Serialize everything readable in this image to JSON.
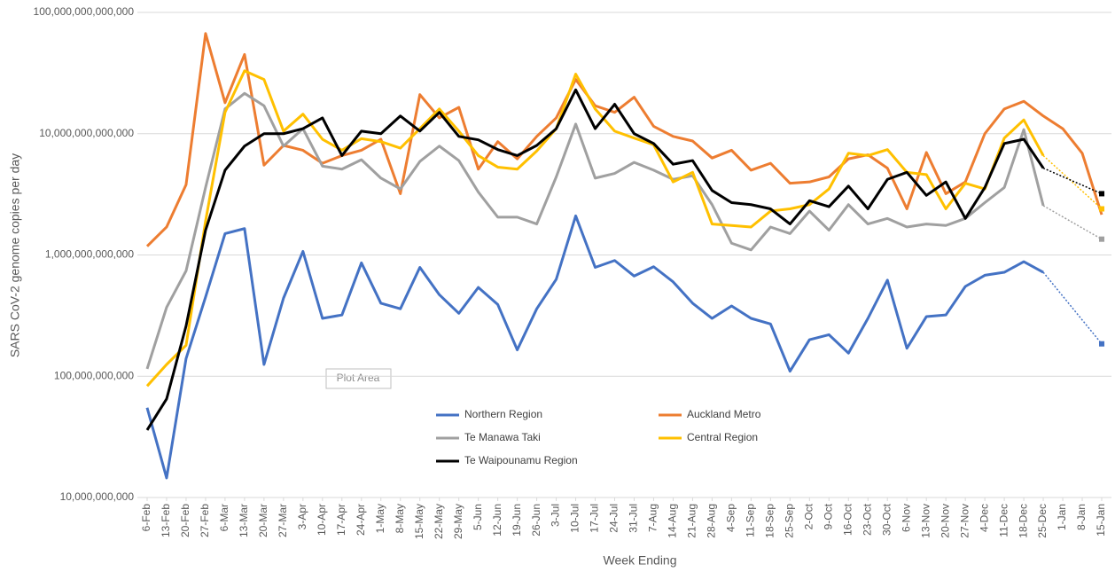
{
  "chart_data": {
    "type": "line",
    "y_label": "SARS CoV-2 genome copies per day",
    "x_label": "Week Ending",
    "annotation": "Plot Area",
    "log_scale": true,
    "grid": true,
    "categories": [
      "6-Feb",
      "13-Feb",
      "20-Feb",
      "27-Feb",
      "6-Mar",
      "13-Mar",
      "20-Mar",
      "27-Mar",
      "3-Apr",
      "10-Apr",
      "17-Apr",
      "24-Apr",
      "1-May",
      "8-May",
      "15-May",
      "22-May",
      "29-May",
      "5-Jun",
      "12-Jun",
      "19-Jun",
      "26-Jun",
      "3-Jul",
      "10-Jul",
      "17-Jul",
      "24-Jul",
      "31-Jul",
      "7-Aug",
      "14-Aug",
      "21-Aug",
      "28-Aug",
      "4-Sep",
      "11-Sep",
      "18-Sep",
      "25-Sep",
      "2-Oct",
      "9-Oct",
      "16-Oct",
      "23-Oct",
      "30-Oct",
      "6-Nov",
      "13-Nov",
      "20-Nov",
      "27-Nov",
      "4-Dec",
      "11-Dec",
      "18-Dec",
      "25-Dec",
      "1-Jan",
      "8-Jan",
      "15-Jan"
    ],
    "ylim": [
      10000000000,
      100000000000000
    ],
    "yticks": [
      {
        "value": 10000000000,
        "label": "10,000,000,000"
      },
      {
        "value": 100000000000,
        "label": "100,000,000,000"
      },
      {
        "value": 1000000000000,
        "label": "1,000,000,000,000"
      },
      {
        "value": 10000000000000,
        "label": "10,000,000,000,000"
      },
      {
        "value": 100000000000000,
        "label": "100,000,000,000,000"
      }
    ],
    "series": [
      {
        "name": "Northern Region",
        "color": "#4472c4",
        "values": [
          55000000000,
          14500000000,
          140000000000,
          450000000000,
          1500000000000,
          1650000000000,
          125000000000,
          440000000000,
          1070000000000,
          300000000000,
          320000000000,
          860000000000,
          400000000000,
          360000000000,
          790000000000,
          470000000000,
          330000000000,
          540000000000,
          390000000000,
          165000000000,
          360000000000,
          630000000000,
          2100000000000,
          790000000000,
          900000000000,
          670000000000,
          800000000000,
          600000000000,
          400000000000,
          300000000000,
          380000000000,
          300000000000,
          270000000000,
          110000000000,
          200000000000,
          220000000000,
          155000000000,
          300000000000,
          620000000000,
          170000000000,
          310000000000,
          320000000000,
          550000000000,
          680000000000,
          720000000000,
          880000000000,
          720000000000,
          null,
          null,
          185000000000
        ]
      },
      {
        "name": "Auckland Metro",
        "color": "#ed7d31",
        "values": [
          1180000000000,
          1700000000000,
          3800000000000,
          67000000000000,
          18000000000000,
          45000000000000,
          5500000000000,
          8000000000000,
          7300000000000,
          5700000000000,
          6600000000000,
          7300000000000,
          9000000000000,
          3200000000000,
          21000000000000,
          13500000000000,
          16500000000000,
          5100000000000,
          8600000000000,
          6200000000000,
          9500000000000,
          13500000000000,
          28000000000000,
          17000000000000,
          15000000000000,
          20000000000000,
          11500000000000,
          9500000000000,
          8700000000000,
          6300000000000,
          7300000000000,
          5000000000000,
          5700000000000,
          3900000000000,
          4000000000000,
          4400000000000,
          6200000000000,
          6700000000000,
          5200000000000,
          2400000000000,
          7000000000000,
          3200000000000,
          4000000000000,
          10000000000000,
          16000000000000,
          18500000000000,
          14000000000000,
          11000000000000,
          6900000000000,
          2150000000000
        ]
      },
      {
        "name": "Te Manawa Taki",
        "color": "#a0a0a0",
        "values": [
          115000000000,
          370000000000,
          740000000000,
          3600000000000,
          16000000000000,
          21500000000000,
          17000000000000,
          7900000000000,
          11000000000000,
          5400000000000,
          5100000000000,
          6100000000000,
          4300000000000,
          3500000000000,
          5900000000000,
          7900000000000,
          6000000000000,
          3300000000000,
          2050000000000,
          2050000000000,
          1800000000000,
          4400000000000,
          12000000000000,
          4300000000000,
          4700000000000,
          5800000000000,
          5000000000000,
          4200000000000,
          4500000000000,
          2600000000000,
          1250000000000,
          1100000000000,
          1700000000000,
          1500000000000,
          2300000000000,
          1600000000000,
          2600000000000,
          1800000000000,
          2000000000000,
          1700000000000,
          1800000000000,
          1750000000000,
          2000000000000,
          2700000000000,
          3600000000000,
          10800000000000,
          2550000000000,
          null,
          null,
          1350000000000
        ]
      },
      {
        "name": "Central Region",
        "color": "#ffc000",
        "values": [
          83000000000,
          125000000000,
          180000000000,
          1900000000000,
          15000000000000,
          33000000000000,
          28000000000000,
          10500000000000,
          14500000000000,
          9000000000000,
          7300000000000,
          9100000000000,
          8600000000000,
          7600000000000,
          11000000000000,
          16000000000000,
          10500000000000,
          6600000000000,
          5300000000000,
          5100000000000,
          7200000000000,
          11000000000000,
          31000000000000,
          16000000000000,
          10500000000000,
          9200000000000,
          8100000000000,
          4000000000000,
          4800000000000,
          1800000000000,
          1750000000000,
          1700000000000,
          2300000000000,
          2400000000000,
          2600000000000,
          3500000000000,
          6900000000000,
          6600000000000,
          7400000000000,
          4800000000000,
          4600000000000,
          2400000000000,
          3900000000000,
          3500000000000,
          9200000000000,
          13000000000000,
          6600000000000,
          null,
          null,
          2400000000000
        ]
      },
      {
        "name": "Te Waipounamu Region",
        "color": "#000000",
        "values": [
          36000000000,
          65000000000,
          260000000000,
          1600000000000,
          5000000000000,
          7900000000000,
          10000000000000,
          10000000000000,
          11000000000000,
          13500000000000,
          6600000000000,
          10500000000000,
          10000000000000,
          14000000000000,
          10500000000000,
          15000000000000,
          9500000000000,
          8900000000000,
          7400000000000,
          6600000000000,
          8000000000000,
          11000000000000,
          23000000000000,
          11000000000000,
          17500000000000,
          10000000000000,
          8300000000000,
          5600000000000,
          6000000000000,
          3400000000000,
          2700000000000,
          2600000000000,
          2400000000000,
          1800000000000,
          2800000000000,
          2500000000000,
          3700000000000,
          2400000000000,
          4200000000000,
          4800000000000,
          3100000000000,
          4000000000000,
          2000000000000,
          3600000000000,
          8300000000000,
          9000000000000,
          5200000000000,
          null,
          null,
          3200000000000
        ]
      }
    ]
  }
}
